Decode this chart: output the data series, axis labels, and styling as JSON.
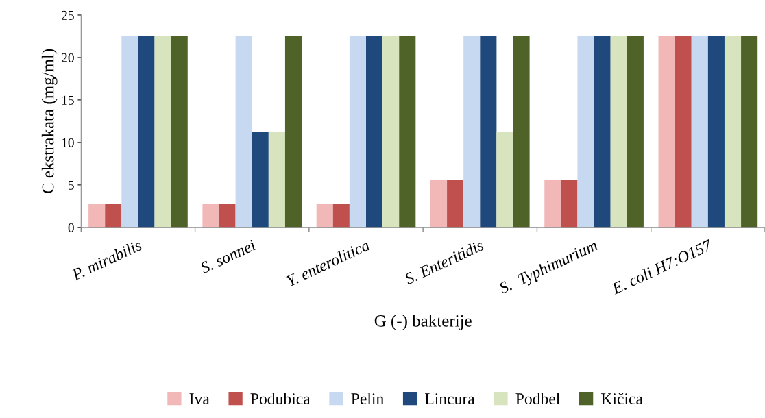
{
  "chart_data": {
    "type": "bar",
    "xlabel": "G (-) bakterije",
    "ylabel": "C ekstrakata (mg/ml)",
    "categories": [
      "P. mirabilis",
      "S. sonnei",
      "Y. enterolitica",
      "S. Enteritidis",
      "S.  Typhimurium",
      "E. coli H7:O157"
    ],
    "series": [
      {
        "name": "Iva",
        "color": "#f2b8b8",
        "values": [
          2.8,
          2.8,
          2.8,
          5.6,
          5.6,
          22.5
        ]
      },
      {
        "name": "Podubica",
        "color": "#c0504d",
        "values": [
          2.8,
          2.8,
          2.8,
          5.6,
          5.6,
          22.5
        ]
      },
      {
        "name": "Pelin",
        "color": "#c6d9f1",
        "values": [
          22.5,
          22.5,
          22.5,
          22.5,
          22.5,
          22.5
        ]
      },
      {
        "name": "Lincura",
        "color": "#1f497d",
        "values": [
          22.5,
          11.2,
          22.5,
          22.5,
          22.5,
          22.5
        ]
      },
      {
        "name": "Podbel",
        "color": "#d7e4bd",
        "values": [
          22.5,
          11.2,
          22.5,
          11.2,
          22.5,
          22.5
        ]
      },
      {
        "name": "Kičica",
        "color": "#4f6228",
        "values": [
          22.5,
          22.5,
          22.5,
          22.5,
          22.5,
          22.5
        ]
      }
    ],
    "ylim": [
      0,
      25
    ],
    "yticks": [
      0,
      5,
      10,
      15,
      20,
      25
    ],
    "grid": false,
    "legend": "bottom"
  }
}
